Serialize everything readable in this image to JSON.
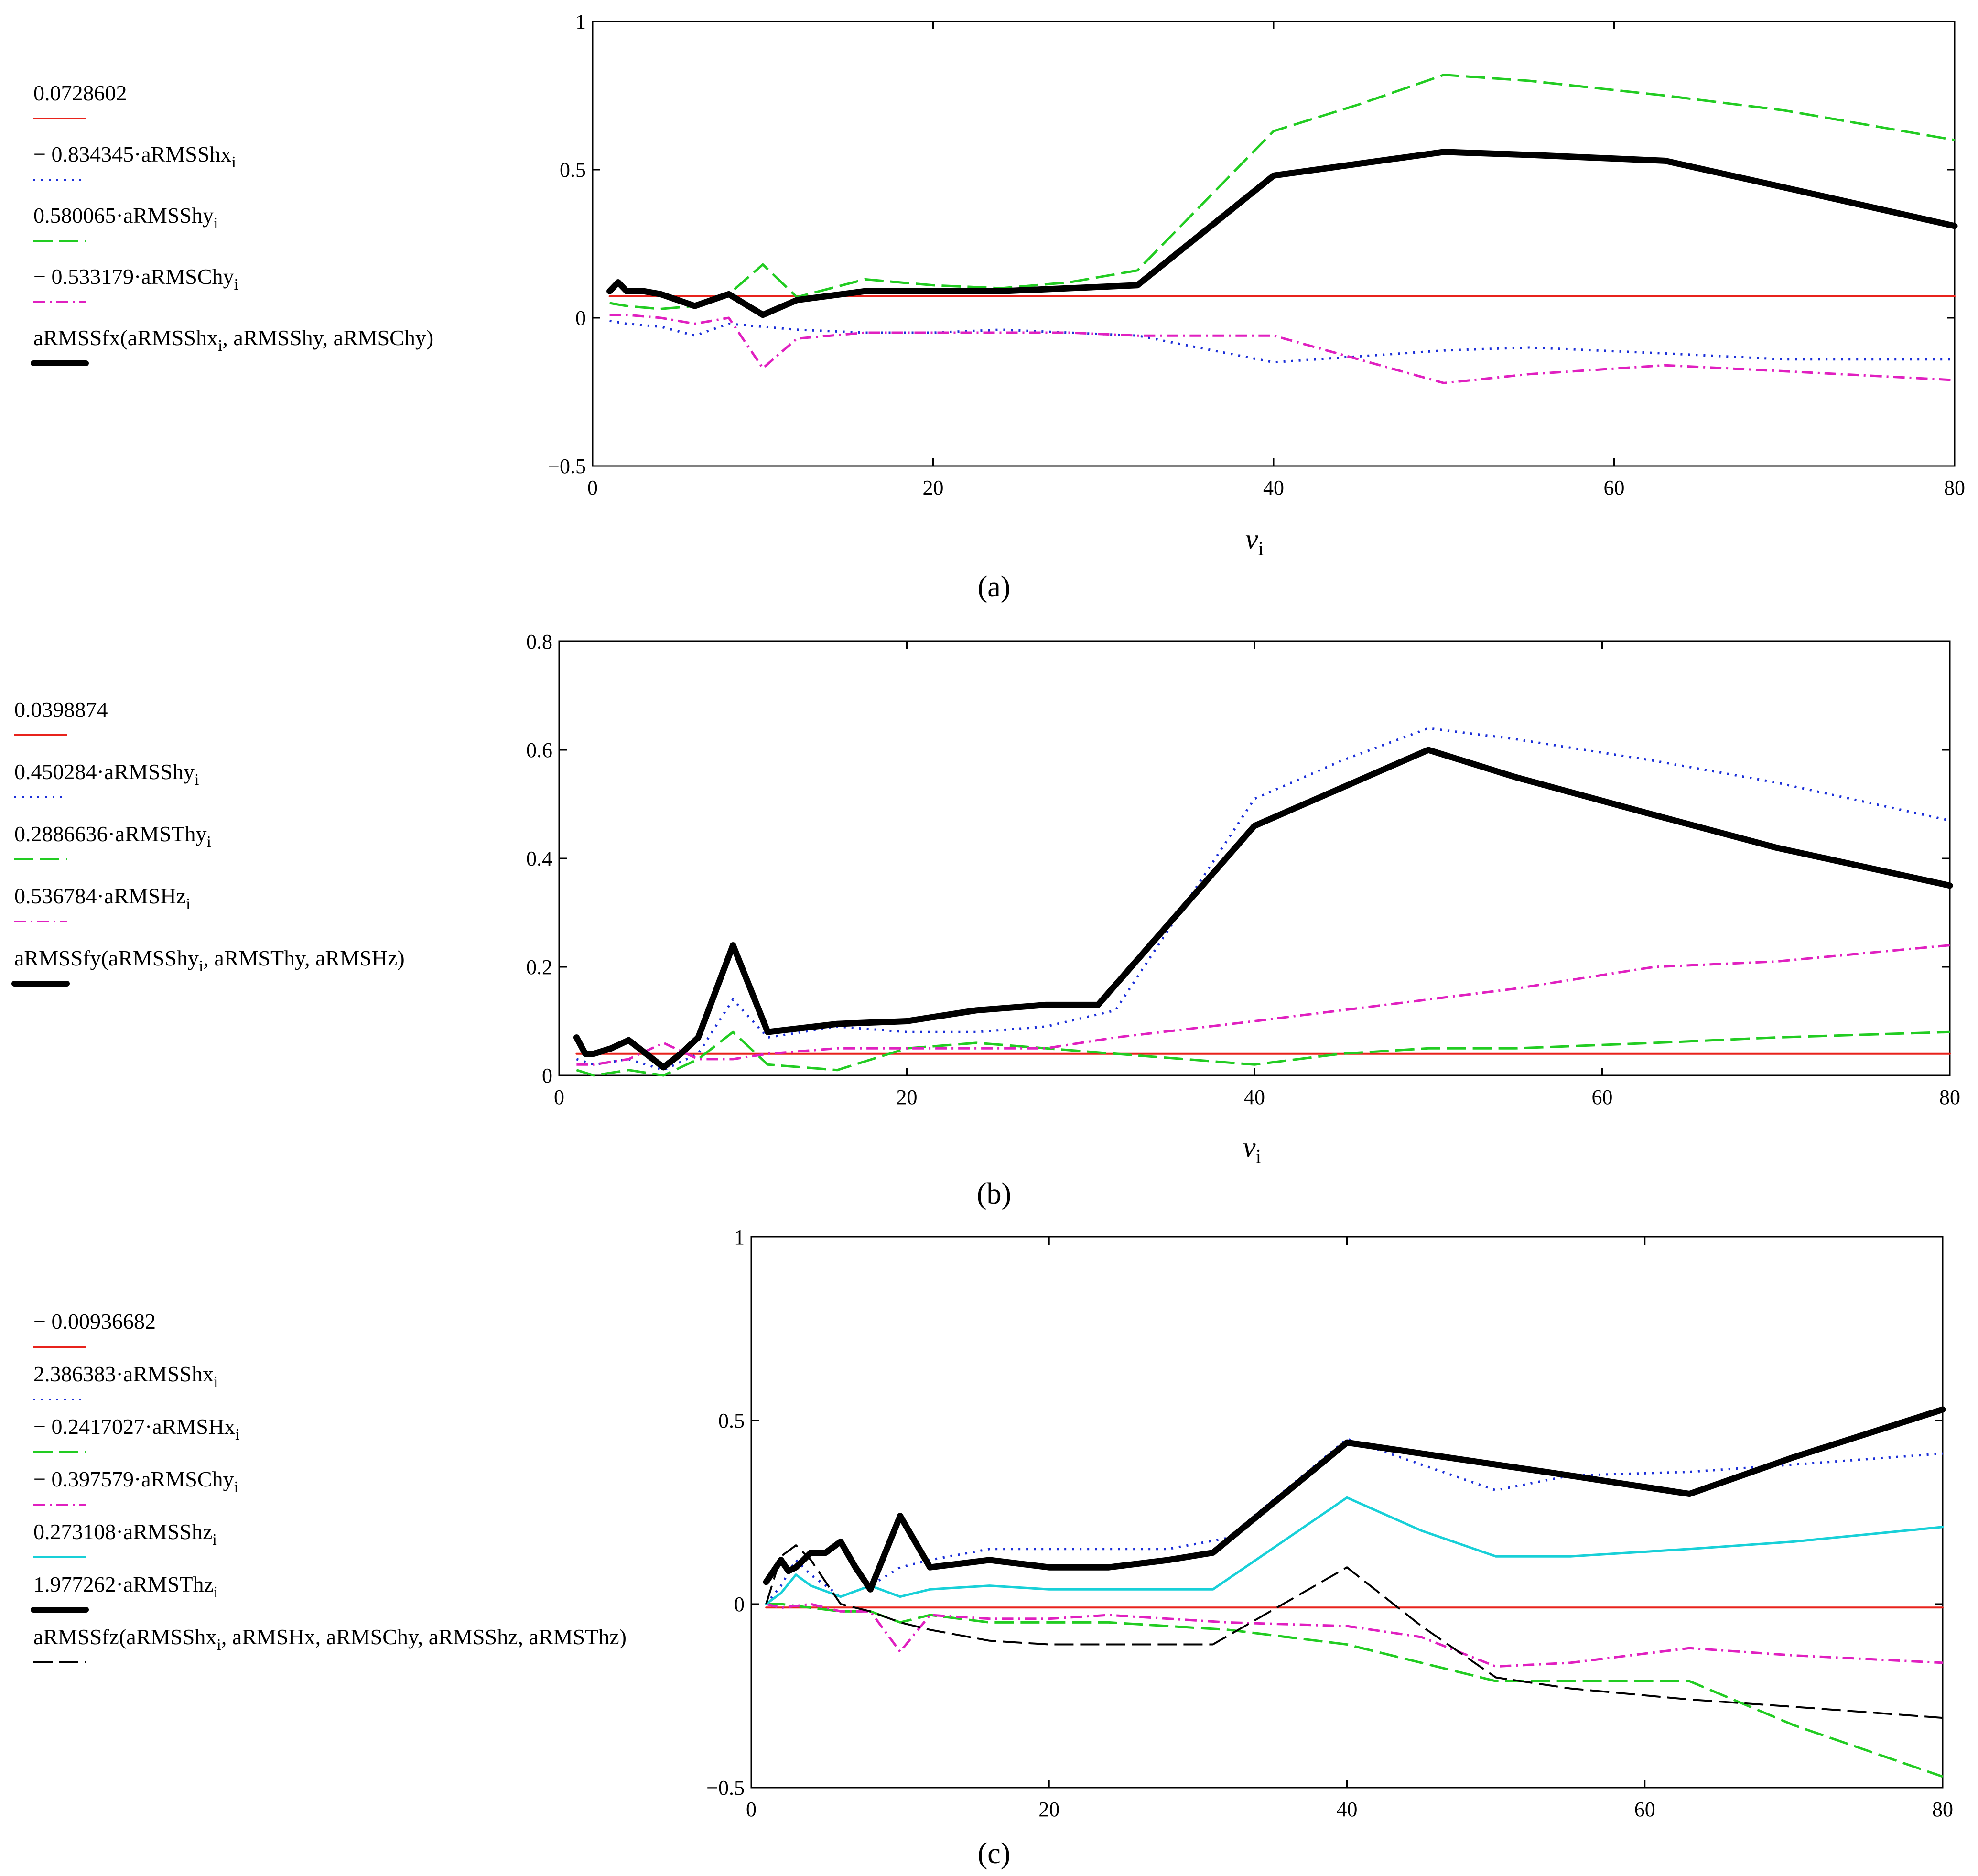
{
  "chart_data": [
    {
      "id": "a",
      "type": "line",
      "caption": "(a)",
      "xlabel": "ν",
      "xlabel_sub": "i",
      "ylabel": "",
      "xlim": [
        0,
        80
      ],
      "ylim": [
        -0.5,
        1
      ],
      "xticks": [
        "0",
        "20",
        "40",
        "60",
        "80"
      ],
      "yticks": [
        "−0.5",
        "0",
        "0.5",
        "1"
      ],
      "ytick_values": [
        -0.5,
        0,
        0.5,
        1
      ],
      "xtick_values": [
        0,
        20,
        40,
        60,
        80
      ],
      "series": [
        {
          "name": "0.0728602",
          "name_sub": "",
          "color": "#e8231c",
          "dash": "",
          "width": 4,
          "x": [
            1,
            80
          ],
          "y": [
            0.0729,
            0.0729
          ]
        },
        {
          "name": "− 0.834345·aRMSShx",
          "name_sub": "i",
          "color": "#1a2ed8",
          "dash": "4,12",
          "width": 5,
          "x": [
            1,
            2,
            4,
            6,
            8,
            10,
            12,
            16,
            20,
            24,
            28,
            32,
            40,
            45,
            50,
            55,
            63,
            70,
            80
          ],
          "y": [
            -0.01,
            -0.02,
            -0.03,
            -0.06,
            -0.02,
            -0.03,
            -0.04,
            -0.05,
            -0.05,
            -0.04,
            -0.05,
            -0.06,
            -0.15,
            -0.13,
            -0.11,
            -0.1,
            -0.12,
            -0.14,
            -0.14
          ]
        },
        {
          "name": "0.580065·aRMSShy",
          "name_sub": "i",
          "color": "#22cc22",
          "dash": "40,14",
          "width": 5,
          "x": [
            1,
            2,
            4,
            6,
            8,
            10,
            12,
            16,
            20,
            24,
            28,
            32,
            40,
            45,
            50,
            55,
            63,
            70,
            80
          ],
          "y": [
            0.05,
            0.04,
            0.03,
            0.04,
            0.08,
            0.18,
            0.07,
            0.13,
            0.11,
            0.1,
            0.12,
            0.16,
            0.63,
            0.72,
            0.82,
            0.8,
            0.75,
            0.7,
            0.6
          ]
        },
        {
          "name": "− 0.533179·aRMSChy",
          "name_sub": "i",
          "color": "#e020c0",
          "dash": "24,10,4,10",
          "width": 5,
          "x": [
            1,
            2,
            4,
            6,
            8,
            10,
            12,
            16,
            20,
            24,
            28,
            32,
            40,
            45,
            50,
            55,
            63,
            70,
            80
          ],
          "y": [
            0.01,
            0.01,
            0.0,
            -0.02,
            0.0,
            -0.17,
            -0.07,
            -0.05,
            -0.05,
            -0.05,
            -0.05,
            -0.06,
            -0.06,
            -0.14,
            -0.22,
            -0.19,
            -0.16,
            -0.18,
            -0.21
          ]
        },
        {
          "name": "aRMSSfx(aRMSShx",
          "name_sub": "i",
          "name_tail": ", aRMSShy, aRMSChy)",
          "color": "#000000",
          "dash": "",
          "width": 13,
          "x": [
            1,
            1.5,
            2,
            3,
            4,
            6,
            8,
            10,
            12,
            16,
            20,
            24,
            28,
            32,
            40,
            45,
            50,
            55,
            63,
            70,
            80
          ],
          "y": [
            0.09,
            0.12,
            0.09,
            0.09,
            0.08,
            0.04,
            0.08,
            0.01,
            0.06,
            0.09,
            0.09,
            0.09,
            0.1,
            0.11,
            0.48,
            0.52,
            0.56,
            0.55,
            0.53,
            0.44,
            0.31
          ]
        }
      ]
    },
    {
      "id": "b",
      "type": "line",
      "caption": "(b)",
      "xlabel": "ν",
      "xlabel_sub": "i",
      "ylabel": "",
      "xlim": [
        0,
        80
      ],
      "ylim": [
        0,
        0.8
      ],
      "xticks": [
        "0",
        "20",
        "40",
        "60",
        "80"
      ],
      "yticks": [
        "0",
        "0.2",
        "0.4",
        "0.6",
        "0.8"
      ],
      "ytick_values": [
        0,
        0.2,
        0.4,
        0.6,
        0.8
      ],
      "xtick_values": [
        0,
        20,
        40,
        60,
        80
      ],
      "series": [
        {
          "name": "0.0398874",
          "name_sub": "",
          "color": "#e8231c",
          "dash": "",
          "width": 4,
          "x": [
            1,
            80
          ],
          "y": [
            0.0399,
            0.0399
          ]
        },
        {
          "name": "0.450284·aRMSShy",
          "name_sub": "i",
          "color": "#1a2ed8",
          "dash": "4,12",
          "width": 5,
          "x": [
            1,
            2,
            4,
            6,
            8,
            10,
            12,
            16,
            20,
            24,
            28,
            32,
            40,
            45,
            50,
            55,
            63,
            70,
            80
          ],
          "y": [
            0.03,
            0.02,
            0.03,
            0.01,
            0.04,
            0.14,
            0.07,
            0.09,
            0.08,
            0.08,
            0.09,
            0.12,
            0.51,
            0.58,
            0.64,
            0.62,
            0.58,
            0.54,
            0.47
          ]
        },
        {
          "name": "0.2886636·aRMSThy",
          "name_sub": "i",
          "color": "#22cc22",
          "dash": "40,14",
          "width": 5,
          "x": [
            1,
            2,
            4,
            6,
            8,
            10,
            12,
            16,
            20,
            24,
            28,
            32,
            40,
            45,
            50,
            55,
            63,
            70,
            80
          ],
          "y": [
            0.01,
            0.0,
            0.01,
            0.0,
            0.03,
            0.08,
            0.02,
            0.01,
            0.05,
            0.06,
            0.05,
            0.04,
            0.02,
            0.04,
            0.05,
            0.05,
            0.06,
            0.07,
            0.08
          ]
        },
        {
          "name": "0.536784·aRMSHz",
          "name_sub": "i",
          "color": "#e020c0",
          "dash": "24,10,4,10",
          "width": 5,
          "x": [
            1,
            2,
            4,
            6,
            8,
            10,
            12,
            16,
            20,
            24,
            28,
            32,
            40,
            45,
            50,
            55,
            63,
            70,
            80
          ],
          "y": [
            0.02,
            0.02,
            0.03,
            0.06,
            0.03,
            0.03,
            0.04,
            0.05,
            0.05,
            0.05,
            0.05,
            0.07,
            0.1,
            0.12,
            0.14,
            0.16,
            0.2,
            0.21,
            0.24
          ]
        },
        {
          "name": "aRMSSfy(aRMSShy",
          "name_sub": "i",
          "name_tail": ", aRMSThy, aRMSHz)",
          "color": "#000000",
          "dash": "",
          "width": 13,
          "x": [
            1,
            1.5,
            2,
            3,
            4,
            5,
            6,
            7,
            8,
            10,
            12,
            16,
            20,
            24,
            28,
            31,
            40,
            45,
            50,
            55,
            63,
            70,
            80
          ],
          "y": [
            0.07,
            0.04,
            0.04,
            0.05,
            0.065,
            0.04,
            0.015,
            0.04,
            0.07,
            0.24,
            0.08,
            0.095,
            0.1,
            0.12,
            0.13,
            0.13,
            0.46,
            0.53,
            0.6,
            0.55,
            0.48,
            0.42,
            0.35
          ]
        }
      ]
    },
    {
      "id": "c",
      "type": "line",
      "caption": "(c)",
      "xlabel": "",
      "xlabel_sub": "",
      "ylabel": "",
      "xlim": [
        0,
        80
      ],
      "ylim": [
        -0.5,
        1
      ],
      "xticks": [
        "0",
        "20",
        "40",
        "60",
        "80"
      ],
      "yticks": [
        "−0.5",
        "0",
        "0.5",
        "1"
      ],
      "ytick_values": [
        -0.5,
        0,
        0.5,
        1
      ],
      "xtick_values": [
        0,
        20,
        40,
        60,
        80
      ],
      "series": [
        {
          "name": "− 0.00936682",
          "name_sub": "",
          "color": "#e8231c",
          "dash": "",
          "width": 4,
          "x": [
            1,
            80
          ],
          "y": [
            -0.0094,
            -0.0094
          ]
        },
        {
          "name": "2.386383·aRMSShx",
          "name_sub": "i",
          "color": "#1a2ed8",
          "dash": "4,12",
          "width": 5,
          "x": [
            1,
            2,
            3,
            4,
            6,
            8,
            10,
            12,
            16,
            20,
            24,
            28,
            32,
            40,
            45,
            50,
            55,
            63,
            70,
            80
          ],
          "y": [
            0.0,
            0.05,
            0.12,
            0.08,
            0.02,
            0.05,
            0.1,
            0.12,
            0.15,
            0.15,
            0.15,
            0.15,
            0.18,
            0.45,
            0.38,
            0.31,
            0.35,
            0.36,
            0.38,
            0.41
          ]
        },
        {
          "name": "− 0.2417027·aRMSHx",
          "name_sub": "i",
          "color": "#22cc22",
          "dash": "40,14",
          "width": 5,
          "x": [
            1,
            2,
            4,
            6,
            8,
            10,
            12,
            16,
            20,
            24,
            28,
            32,
            40,
            45,
            50,
            55,
            63,
            70,
            80
          ],
          "y": [
            0.0,
            0.0,
            -0.01,
            -0.02,
            -0.02,
            -0.05,
            -0.03,
            -0.05,
            -0.05,
            -0.05,
            -0.06,
            -0.07,
            -0.11,
            -0.16,
            -0.21,
            -0.21,
            -0.21,
            -0.33,
            -0.47
          ]
        },
        {
          "name": "− 0.397579·aRMSChy",
          "name_sub": "i",
          "color": "#e020c0",
          "dash": "24,10,4,10",
          "width": 5,
          "x": [
            1,
            2,
            4,
            6,
            8,
            10,
            12,
            16,
            20,
            24,
            28,
            32,
            40,
            45,
            50,
            55,
            63,
            70,
            80
          ],
          "y": [
            0.0,
            -0.01,
            0.0,
            -0.02,
            -0.02,
            -0.13,
            -0.03,
            -0.04,
            -0.04,
            -0.03,
            -0.04,
            -0.05,
            -0.06,
            -0.09,
            -0.17,
            -0.16,
            -0.12,
            -0.14,
            -0.16
          ]
        },
        {
          "name": "0.273108·aRMSShz",
          "name_sub": "i",
          "color": "#18d0d8",
          "dash": "",
          "width": 5,
          "x": [
            1,
            2,
            3,
            4,
            6,
            8,
            10,
            12,
            16,
            20,
            24,
            28,
            31,
            40,
            45,
            50,
            55,
            63,
            70,
            80
          ],
          "y": [
            0.0,
            0.03,
            0.08,
            0.05,
            0.02,
            0.05,
            0.02,
            0.04,
            0.05,
            0.04,
            0.04,
            0.04,
            0.04,
            0.29,
            0.2,
            0.13,
            0.13,
            0.15,
            0.17,
            0.21
          ]
        },
        {
          "name": "1.977262·aRMSThz",
          "name_sub": "i",
          "color": "#000000",
          "dash": "",
          "width": 13,
          "x": [
            1,
            2,
            2.5,
            3,
            4,
            5,
            6,
            7,
            8,
            10,
            12,
            16,
            20,
            24,
            28,
            31,
            40,
            45,
            50,
            55,
            63,
            70,
            80
          ],
          "y": [
            0.06,
            0.12,
            0.09,
            0.1,
            0.14,
            0.14,
            0.17,
            0.1,
            0.04,
            0.24,
            0.1,
            0.12,
            0.1,
            0.1,
            0.12,
            0.14,
            0.44,
            0.41,
            0.38,
            0.35,
            0.3,
            0.4,
            0.53
          ]
        },
        {
          "name": "aRMSSfz(aRMSShx",
          "name_sub": "i",
          "name_tail": ", aRMSHx, aRMSChy, aRMSShz, aRMSThz)",
          "color": "#000000",
          "dash": "40,14",
          "width": 4,
          "x": [
            1,
            2,
            3,
            4,
            6,
            8,
            10,
            12,
            16,
            20,
            24,
            28,
            31,
            40,
            45,
            50,
            55,
            63,
            70,
            80
          ],
          "y": [
            0.0,
            0.13,
            0.16,
            0.12,
            0.0,
            -0.02,
            -0.05,
            -0.07,
            -0.1,
            -0.11,
            -0.11,
            -0.11,
            -0.11,
            0.1,
            -0.06,
            -0.2,
            -0.23,
            -0.26,
            -0.28,
            -0.31
          ]
        }
      ]
    }
  ]
}
